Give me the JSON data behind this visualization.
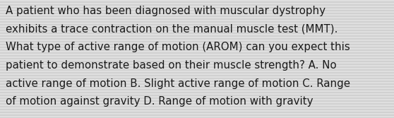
{
  "background_color_light": "#e8e8e8",
  "background_color_dark": "#c8c8c8",
  "stripe_color_light": "#dcdcdc",
  "stripe_color_dark": "#c0c0c0",
  "text_color": "#1a1a1a",
  "font_size": 10.8,
  "fig_width": 5.58,
  "fig_height": 1.67,
  "dpi": 100,
  "line1": "A patient who has been diagnosed with muscular dystrophy",
  "line2": "exhibits a trace contraction on the manual muscle test (MMT).",
  "line3": "What type of active range of motion (AROM) can you expect this",
  "line4": "patient to demonstrate based on their muscle strength? A. No",
  "line5": "active range of motion B. Slight active range of motion C. Range",
  "line6": "of motion against gravity D. Range of motion with gravity"
}
